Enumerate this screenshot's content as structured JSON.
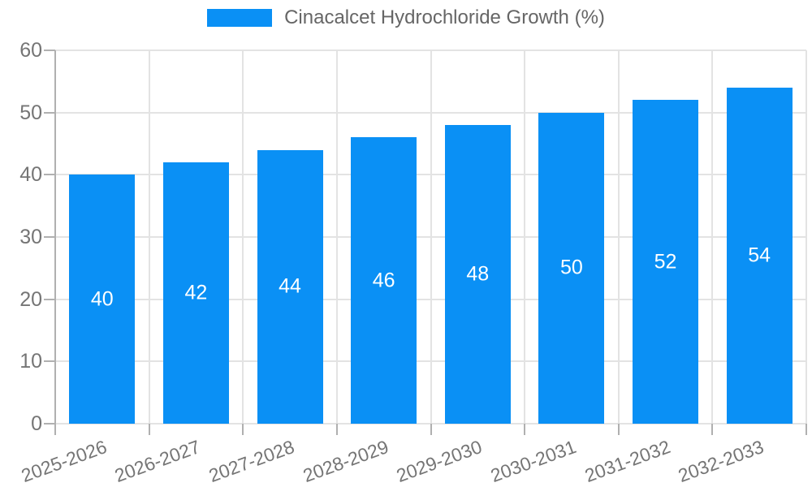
{
  "chart_data": {
    "type": "bar",
    "title": "Cinacalcet Hydrochloride Growth (%)",
    "categories": [
      "2025-2026",
      "2026-2027",
      "2027-2028",
      "2028-2029",
      "2029-2030",
      "2030-2031",
      "2031-2032",
      "2032-2033"
    ],
    "values": [
      40,
      42,
      44,
      46,
      48,
      50,
      52,
      54
    ],
    "xlabel": "",
    "ylabel": "",
    "ylim": [
      0,
      60
    ],
    "ytick_step": 10,
    "yticks": [
      0,
      10,
      20,
      30,
      40,
      50,
      60
    ],
    "grid": true,
    "legend_position": "top-center",
    "value_labels": "centered-inside-bars",
    "colors": {
      "bar": "#0a90f5",
      "value_label": "#ffffff",
      "grid_line": "#e3e3e3",
      "axis_line": "#b0b0b0",
      "tick_text": "#757575",
      "legend_text": "#666666",
      "background": "#ffffff"
    }
  }
}
